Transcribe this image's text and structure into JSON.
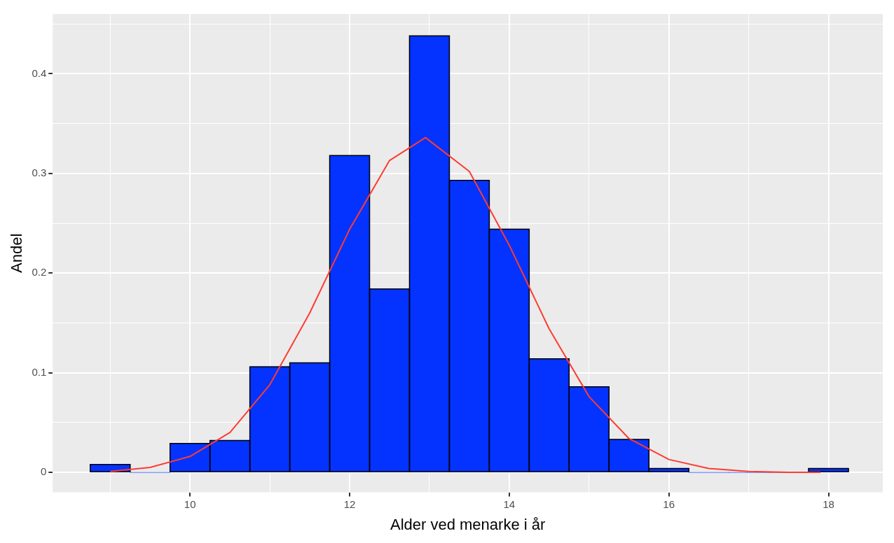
{
  "chart_data": {
    "type": "histogram",
    "xlabel": "Alder ved menarke i år",
    "ylabel": "Andel",
    "bins": [
      8.75,
      9.25,
      9.75,
      10.25,
      10.75,
      11.25,
      11.75,
      12.25,
      12.75,
      13.25,
      13.75,
      14.25,
      14.75,
      15.25,
      15.75,
      16.25,
      16.75,
      17.25,
      17.75,
      18.25
    ],
    "values": [
      0.008,
      0,
      0.029,
      0.032,
      0.106,
      0.11,
      0.318,
      0.184,
      0.438,
      0.293,
      0.244,
      0.114,
      0.086,
      0.033,
      0.004,
      0,
      0,
      0,
      0.004
    ],
    "color": "#0433ff",
    "series": [
      {
        "type": "line",
        "color": "#ff3b30",
        "x": [
          9,
          9.5,
          10,
          10.5,
          11,
          11.5,
          12,
          12.5,
          12.95,
          13.5,
          14,
          14.5,
          15,
          15.5,
          16,
          16.5,
          17,
          17.5,
          17.9
        ],
        "values": [
          0.001,
          0.005,
          0.016,
          0.04,
          0.088,
          0.16,
          0.244,
          0.313,
          0.336,
          0.302,
          0.228,
          0.144,
          0.076,
          0.034,
          0.013,
          0.004,
          0.001,
          0,
          0
        ]
      }
    ],
    "xlim": [
      8.28,
      18.68
    ],
    "ylim": [
      -0.02,
      0.46
    ],
    "xticks": [
      {
        "value": 9,
        "label": null
      },
      10,
      {
        "value": 11,
        "label": null
      },
      12,
      {
        "value": 13,
        "label": null
      },
      14,
      {
        "value": 15,
        "label": null
      },
      16,
      {
        "value": 17,
        "label": null
      },
      18
    ],
    "yticks": [
      0,
      {
        "value": 0.05,
        "label": null
      },
      0.1,
      {
        "value": 0.15,
        "label": null
      },
      0.2,
      {
        "value": 0.25,
        "label": null
      },
      0.3,
      {
        "value": 0.35,
        "label": null
      },
      0.4,
      {
        "value": 0.45,
        "label": null
      }
    ],
    "grid": true,
    "legend": false
  }
}
